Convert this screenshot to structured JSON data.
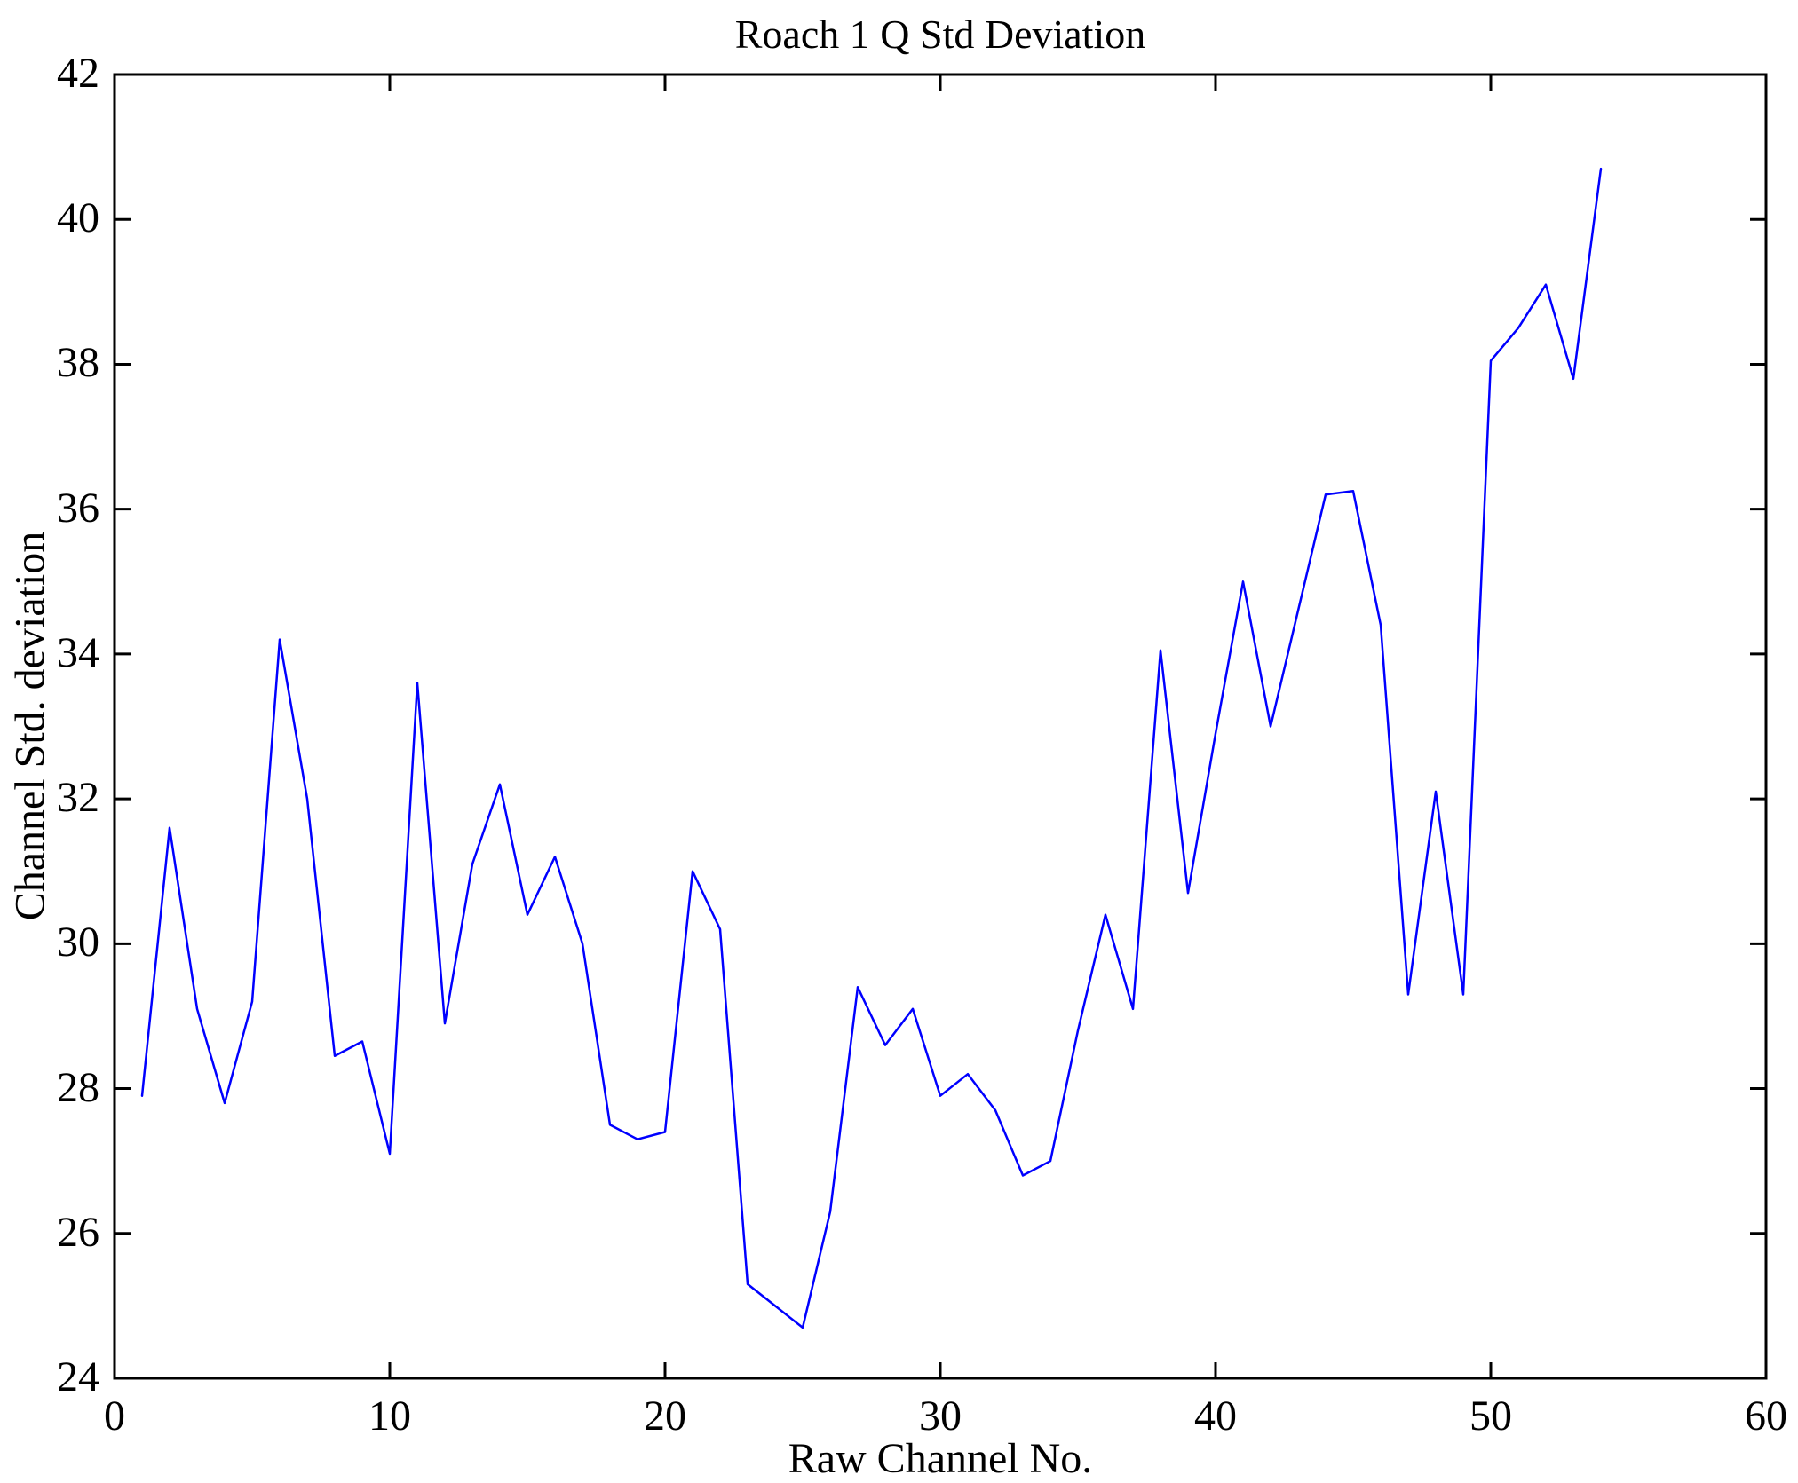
{
  "figure": {
    "background": "#ffffff",
    "text_color": "#000000"
  },
  "chart_data": {
    "type": "line",
    "title": "Roach 1 Q Std Deviation",
    "xlabel": "Raw Channel No.",
    "ylabel": "Channel Std. deviation",
    "xlim": [
      0,
      60
    ],
    "ylim": [
      24,
      42
    ],
    "xticks": [
      0,
      10,
      20,
      30,
      40,
      50,
      60
    ],
    "yticks": [
      24,
      26,
      28,
      30,
      32,
      34,
      36,
      38,
      40,
      42
    ],
    "grid": false,
    "legend": null,
    "line_color": "#0000ff",
    "axis_color": "#000000",
    "x": [
      1,
      2,
      3,
      4,
      5,
      6,
      7,
      8,
      9,
      10,
      11,
      12,
      13,
      14,
      15,
      16,
      17,
      18,
      19,
      20,
      21,
      22,
      23,
      24,
      25,
      26,
      27,
      28,
      29,
      30,
      31,
      32,
      33,
      34,
      35,
      36,
      37,
      38,
      39,
      40,
      41,
      42,
      43,
      44,
      45,
      46,
      47,
      48,
      49,
      50,
      51,
      52,
      53,
      54
    ],
    "y": [
      27.9,
      31.6,
      29.1,
      27.8,
      29.2,
      34.2,
      32.0,
      28.45,
      28.65,
      27.1,
      33.6,
      28.9,
      31.1,
      32.2,
      30.4,
      31.2,
      30.0,
      27.5,
      27.3,
      27.4,
      31.0,
      30.2,
      25.3,
      25.0,
      24.7,
      26.3,
      29.4,
      28.6,
      29.1,
      27.9,
      28.2,
      27.7,
      26.8,
      27.0,
      28.8,
      30.4,
      29.1,
      34.05,
      30.7,
      32.9,
      35.0,
      33.0,
      34.6,
      36.2,
      36.25,
      34.4,
      29.3,
      32.1,
      29.3,
      38.05,
      38.5,
      39.1,
      37.8,
      40.7
    ]
  }
}
